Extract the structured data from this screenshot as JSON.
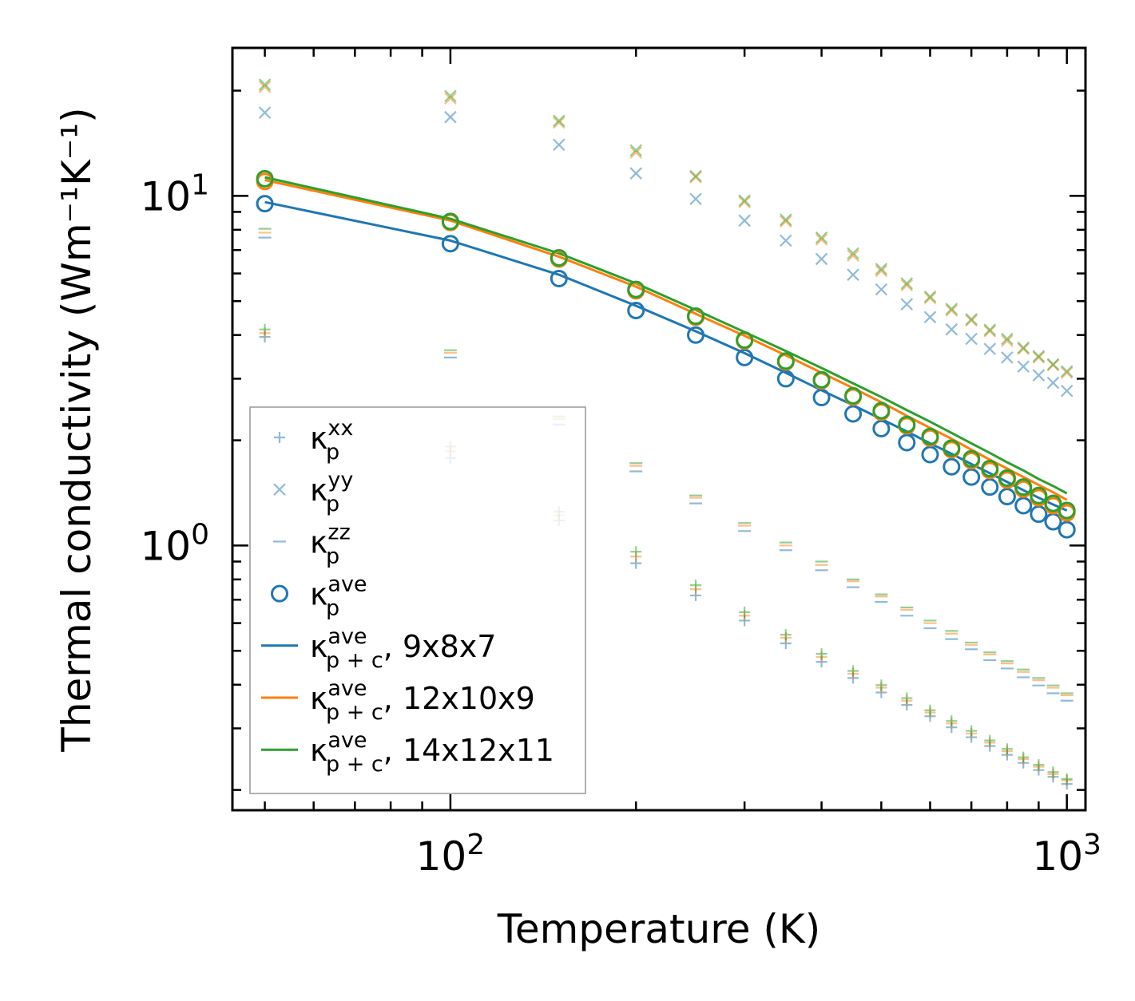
{
  "chart_data": {
    "type": "scatter",
    "title": "",
    "xlabel": "Temperature (K)",
    "ylabel": "Thermal conductivity (Wm⁻¹K⁻¹)",
    "xscale": "log",
    "yscale": "log",
    "xlim": [
      44.3,
      1072
    ],
    "ylim": [
      0.175,
      26.5
    ],
    "x_ticks": [
      {
        "label": "10",
        "exp": "2"
      },
      {
        "label": "10",
        "exp": "3"
      }
    ],
    "y_ticks": [
      {
        "label": "10",
        "exp": "0"
      },
      {
        "label": "10",
        "exp": "1"
      }
    ],
    "temperatures": [
      50,
      100,
      150,
      200,
      250,
      300,
      350,
      400,
      450,
      500,
      550,
      600,
      650,
      700,
      750,
      800,
      850,
      900,
      950,
      1000
    ],
    "series": [
      {
        "name": "kappa_p_xx 9x8x7",
        "marker": "+",
        "color": "#1f77b4",
        "alpha": 0.5,
        "values": [
          3.95,
          1.78,
          1.18,
          0.89,
          0.72,
          0.61,
          0.525,
          0.465,
          0.418,
          0.38,
          0.35,
          0.325,
          0.302,
          0.283,
          0.267,
          0.252,
          0.239,
          0.228,
          0.218,
          0.208
        ]
      },
      {
        "name": "kappa_p_xx 12x10x9",
        "marker": "+",
        "color": "#ff7f0e",
        "alpha": 0.5,
        "values": [
          4.05,
          1.86,
          1.22,
          0.93,
          0.75,
          0.63,
          0.545,
          0.48,
          0.43,
          0.392,
          0.36,
          0.333,
          0.31,
          0.29,
          0.273,
          0.258,
          0.245,
          0.233,
          0.222,
          0.213
        ]
      },
      {
        "name": "kappa_p_xx 14x12x11",
        "marker": "+",
        "color": "#2ca02c",
        "alpha": 0.5,
        "values": [
          4.15,
          1.92,
          1.25,
          0.96,
          0.77,
          0.645,
          0.556,
          0.49,
          0.438,
          0.399,
          0.366,
          0.338,
          0.315,
          0.295,
          0.277,
          0.262,
          0.248,
          0.236,
          0.225,
          0.215
        ]
      },
      {
        "name": "kappa_p_yy 9x8x7",
        "marker": "x",
        "color": "#1f77b4",
        "alpha": 0.5,
        "values": [
          17.3,
          16.8,
          14.0,
          11.6,
          9.8,
          8.5,
          7.45,
          6.6,
          5.95,
          5.4,
          4.9,
          4.5,
          4.15,
          3.9,
          3.65,
          3.45,
          3.25,
          3.07,
          2.92,
          2.77
        ]
      },
      {
        "name": "kappa_p_yy 12x10x9",
        "marker": "x",
        "color": "#ff7f0e",
        "alpha": 0.5,
        "values": [
          20.5,
          19.0,
          16.2,
          13.3,
          11.3,
          9.6,
          8.45,
          7.5,
          6.75,
          6.1,
          5.55,
          5.1,
          4.7,
          4.4,
          4.1,
          3.85,
          3.65,
          3.45,
          3.28,
          3.12
        ]
      },
      {
        "name": "kappa_p_yy 14x12x11",
        "marker": "x",
        "color": "#2ca02c",
        "alpha": 0.5,
        "values": [
          20.8,
          19.3,
          16.4,
          13.5,
          11.4,
          9.7,
          8.55,
          7.6,
          6.85,
          6.18,
          5.62,
          5.15,
          4.75,
          4.44,
          4.14,
          3.9,
          3.68,
          3.48,
          3.3,
          3.15
        ]
      },
      {
        "name": "kappa_p_zz 9x8x7",
        "marker": "_",
        "color": "#1f77b4",
        "alpha": 0.5,
        "values": [
          7.6,
          3.45,
          2.22,
          1.63,
          1.32,
          1.1,
          0.97,
          0.85,
          0.76,
          0.69,
          0.63,
          0.58,
          0.54,
          0.505,
          0.47,
          0.445,
          0.42,
          0.398,
          0.378,
          0.36
        ]
      },
      {
        "name": "kappa_p_zz 12x10x9",
        "marker": "_",
        "color": "#ff7f0e",
        "alpha": 0.5,
        "values": [
          7.85,
          3.56,
          2.3,
          1.69,
          1.37,
          1.14,
          1.0,
          0.88,
          0.79,
          0.715,
          0.655,
          0.6,
          0.56,
          0.52,
          0.488,
          0.46,
          0.435,
          0.412,
          0.392,
          0.373
        ]
      },
      {
        "name": "kappa_p_zz 14x12x11",
        "marker": "_",
        "color": "#2ca02c",
        "alpha": 0.5,
        "values": [
          8.05,
          3.62,
          2.34,
          1.72,
          1.39,
          1.16,
          1.02,
          0.9,
          0.8,
          0.725,
          0.665,
          0.61,
          0.57,
          0.528,
          0.495,
          0.467,
          0.442,
          0.418,
          0.398,
          0.378
        ]
      },
      {
        "name": "kappa_p_ave 9x8x7",
        "marker": "o",
        "color": "#1f77b4",
        "alpha": 1,
        "values": [
          9.5,
          7.3,
          5.8,
          4.7,
          4.0,
          3.45,
          3.0,
          2.65,
          2.38,
          2.16,
          1.97,
          1.82,
          1.68,
          1.57,
          1.47,
          1.38,
          1.3,
          1.23,
          1.17,
          1.11
        ]
      },
      {
        "name": "kappa_p_ave 12x10x9",
        "marker": "o",
        "color": "#ff7f0e",
        "alpha": 1,
        "values": [
          11.0,
          8.4,
          6.6,
          5.35,
          4.5,
          3.85,
          3.35,
          2.96,
          2.66,
          2.41,
          2.2,
          2.03,
          1.88,
          1.75,
          1.64,
          1.54,
          1.45,
          1.37,
          1.3,
          1.24
        ]
      },
      {
        "name": "kappa_p_ave 14x12x11",
        "marker": "o",
        "color": "#2ca02c",
        "alpha": 1,
        "values": [
          11.2,
          8.45,
          6.65,
          5.4,
          4.53,
          3.87,
          3.37,
          2.98,
          2.68,
          2.43,
          2.22,
          2.05,
          1.9,
          1.77,
          1.66,
          1.56,
          1.47,
          1.39,
          1.32,
          1.26
        ]
      },
      {
        "name": "kappa_p+c_ave, 9x8x7",
        "marker": "line",
        "color": "#1f77b4",
        "alpha": 1,
        "values": [
          9.6,
          7.45,
          5.95,
          4.85,
          4.1,
          3.55,
          3.12,
          2.78,
          2.52,
          2.3,
          2.12,
          1.96,
          1.83,
          1.71,
          1.61,
          1.52,
          1.44,
          1.37,
          1.31,
          1.26
        ]
      },
      {
        "name": "kappa_p+c_ave, 12x10x9",
        "marker": "line",
        "color": "#ff7f0e",
        "alpha": 1,
        "values": [
          11.1,
          8.5,
          6.7,
          5.5,
          4.6,
          3.98,
          3.5,
          3.12,
          2.82,
          2.57,
          2.35,
          2.17,
          2.02,
          1.88,
          1.76,
          1.66,
          1.57,
          1.49,
          1.42,
          1.35
        ]
      },
      {
        "name": "kappa_p+c_ave, 14x12x11",
        "marker": "line",
        "color": "#2ca02c",
        "alpha": 1,
        "values": [
          11.3,
          8.6,
          6.85,
          5.62,
          4.72,
          4.08,
          3.6,
          3.22,
          2.91,
          2.66,
          2.44,
          2.26,
          2.1,
          1.96,
          1.84,
          1.73,
          1.64,
          1.55,
          1.48,
          1.41
        ]
      }
    ],
    "legend": {
      "position": "lower-left",
      "entries": [
        {
          "marker": "+",
          "color": "#1f77b4",
          "alpha": 0.5,
          "base": "κ",
          "sub": "p",
          "sup": "xx",
          "suffix": ""
        },
        {
          "marker": "x",
          "color": "#1f77b4",
          "alpha": 0.5,
          "base": "κ",
          "sub": "p",
          "sup": "yy",
          "suffix": ""
        },
        {
          "marker": "_",
          "color": "#1f77b4",
          "alpha": 0.5,
          "base": "κ",
          "sub": "p",
          "sup": "zz",
          "suffix": ""
        },
        {
          "marker": "o",
          "color": "#1f77b4",
          "alpha": 1,
          "base": "κ",
          "sub": "p",
          "sup": "ave",
          "suffix": ""
        },
        {
          "marker": "line",
          "color": "#1f77b4",
          "alpha": 1,
          "base": "κ",
          "sub": "p + c",
          "sup": "ave",
          "suffix": ", 9x8x7"
        },
        {
          "marker": "line",
          "color": "#ff7f0e",
          "alpha": 1,
          "base": "κ",
          "sub": "p + c",
          "sup": "ave",
          "suffix": ", 12x10x9"
        },
        {
          "marker": "line",
          "color": "#2ca02c",
          "alpha": 1,
          "base": "κ",
          "sub": "p + c",
          "sup": "ave",
          "suffix": ", 14x12x11"
        }
      ]
    }
  }
}
